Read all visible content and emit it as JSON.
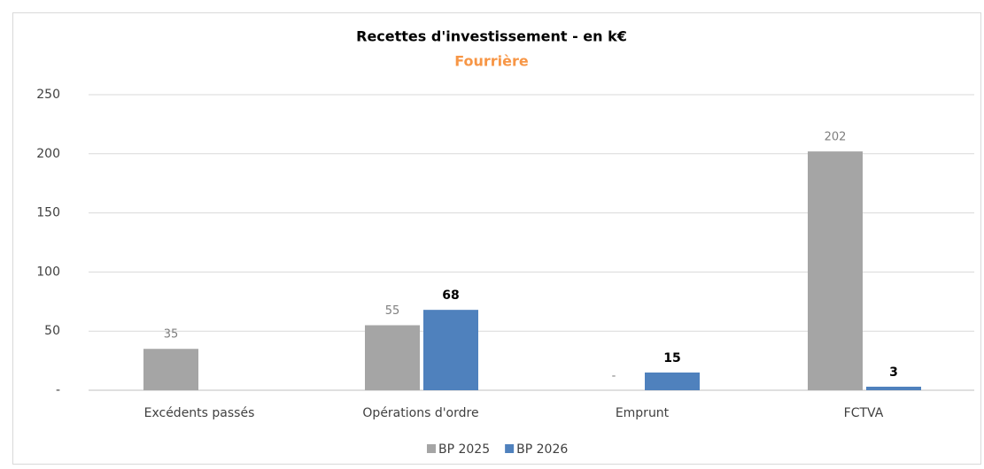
{
  "chart_data": {
    "type": "bar",
    "title": "Recettes d'investissement - en k€",
    "subtitle": "Fourrière",
    "categories": [
      "Excédents passés",
      "Opérations d'ordre",
      "Emprunt",
      "FCTVA"
    ],
    "series": [
      {
        "name": "BP 2025",
        "color": "#a5a5a5",
        "values": [
          35,
          55,
          0,
          202
        ],
        "value_labels": [
          "35",
          "55",
          "-",
          "202"
        ]
      },
      {
        "name": "BP 2026",
        "color": "#4f81bd",
        "values": [
          null,
          68,
          15,
          3
        ]
      }
    ],
    "ylim": [
      0,
      250
    ],
    "yticks": [
      {
        "value": 0,
        "label": "-"
      },
      50,
      100,
      150,
      200,
      250
    ],
    "grid": true,
    "legend": "bottom"
  }
}
